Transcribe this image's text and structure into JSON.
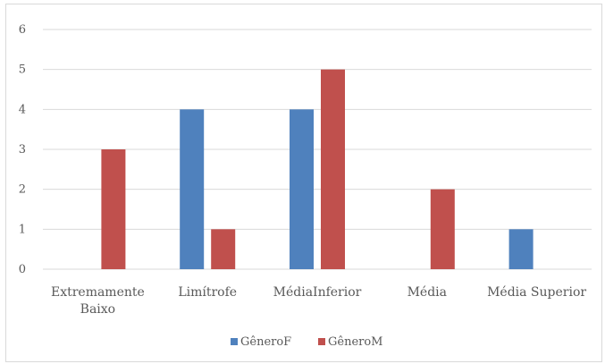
{
  "chart_data": {
    "type": "bar",
    "categories": [
      [
        "Extremamente",
        "Baixo"
      ],
      [
        "Limítrofe"
      ],
      [
        "MédiaInferior"
      ],
      [
        "Média"
      ],
      [
        "Média Superior"
      ]
    ],
    "series": [
      {
        "name": "GêneroF",
        "color": "#4f81bd",
        "values": [
          0,
          4,
          4,
          0,
          1
        ]
      },
      {
        "name": "GêneroM",
        "color": "#c0504d",
        "values": [
          3,
          1,
          5,
          2,
          0
        ]
      }
    ],
    "ylim": [
      0,
      6
    ],
    "yticks": [
      0,
      1,
      2,
      3,
      4,
      5,
      6
    ],
    "grid": true,
    "legend_position": "bottom"
  }
}
